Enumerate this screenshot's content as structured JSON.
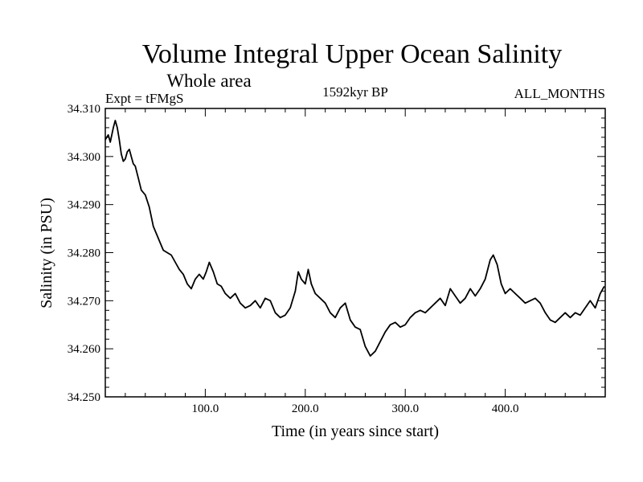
{
  "chart_data": {
    "type": "line",
    "title": "Volume Integral Upper Ocean Salinity",
    "subtitle": "Whole area",
    "experiment": "Expt = tFMgS",
    "period": "1592kyr BP",
    "months": "ALL_MONTHS",
    "xlabel": "Time (in years since start)",
    "ylabel": "Salinity (in PSU)",
    "xlim": [
      0,
      500
    ],
    "ylim": [
      34.25,
      34.31
    ],
    "x_ticks": [
      100,
      200,
      300,
      400
    ],
    "x_tick_labels": [
      "100.0",
      "200.0",
      "300.0",
      "400.0"
    ],
    "y_ticks": [
      34.25,
      34.26,
      34.27,
      34.28,
      34.29,
      34.3,
      34.31
    ],
    "y_tick_labels": [
      "34.250",
      "34.260",
      "34.270",
      "34.280",
      "34.290",
      "34.300",
      "34.310"
    ],
    "series": [
      {
        "name": "salinity",
        "x": [
          0,
          3,
          5,
          8,
          10,
          12,
          14,
          16,
          18,
          20,
          22,
          24,
          26,
          28,
          30,
          33,
          36,
          40,
          44,
          48,
          52,
          55,
          58,
          62,
          66,
          70,
          74,
          78,
          82,
          86,
          90,
          94,
          98,
          101,
          104,
          108,
          112,
          116,
          120,
          125,
          130,
          135,
          140,
          145,
          150,
          155,
          160,
          165,
          170,
          175,
          180,
          185,
          190,
          193,
          196,
          200,
          203,
          206,
          210,
          215,
          220,
          225,
          230,
          235,
          240,
          245,
          250,
          255,
          260,
          265,
          270,
          275,
          280,
          285,
          290,
          295,
          300,
          305,
          310,
          315,
          320,
          325,
          330,
          335,
          340,
          345,
          350,
          355,
          360,
          365,
          370,
          375,
          380,
          385,
          388,
          392,
          396,
          400,
          405,
          410,
          415,
          420,
          425,
          430,
          435,
          440,
          445,
          450,
          455,
          460,
          465,
          470,
          475,
          480,
          485,
          490,
          495,
          499
        ],
        "y": [
          34.3035,
          34.3045,
          34.303,
          34.306,
          34.3075,
          34.306,
          34.3035,
          34.3005,
          34.299,
          34.2995,
          34.301,
          34.3015,
          34.3,
          34.2985,
          34.298,
          34.2955,
          34.293,
          34.292,
          34.2895,
          34.2855,
          34.2835,
          34.282,
          34.2805,
          34.28,
          34.2795,
          34.278,
          34.2765,
          34.2755,
          34.2735,
          34.2725,
          34.2745,
          34.2755,
          34.2745,
          34.276,
          34.278,
          34.276,
          34.2735,
          34.273,
          34.2715,
          34.2705,
          34.2715,
          34.2695,
          34.2685,
          34.269,
          34.27,
          34.2685,
          34.2705,
          34.27,
          34.2675,
          34.2665,
          34.267,
          34.2685,
          34.272,
          34.276,
          34.2745,
          34.2735,
          34.2765,
          34.2735,
          34.2715,
          34.2705,
          34.2695,
          34.2675,
          34.2665,
          34.2685,
          34.2695,
          34.266,
          34.2645,
          34.264,
          34.2605,
          34.2585,
          34.2595,
          34.2615,
          34.2635,
          34.265,
          34.2655,
          34.2645,
          34.265,
          34.2665,
          34.2675,
          34.268,
          34.2675,
          34.2685,
          34.2695,
          34.2705,
          34.269,
          34.2725,
          34.271,
          34.2695,
          34.2705,
          34.2725,
          34.271,
          34.2725,
          34.2745,
          34.2785,
          34.2795,
          34.2775,
          34.2735,
          34.2715,
          34.2725,
          34.2715,
          34.2705,
          34.2695,
          34.27,
          34.2705,
          34.2695,
          34.2675,
          34.266,
          34.2655,
          34.2665,
          34.2675,
          34.2665,
          34.2675,
          34.267,
          34.2685,
          34.27,
          34.2685,
          34.2715,
          34.273
        ]
      }
    ]
  }
}
